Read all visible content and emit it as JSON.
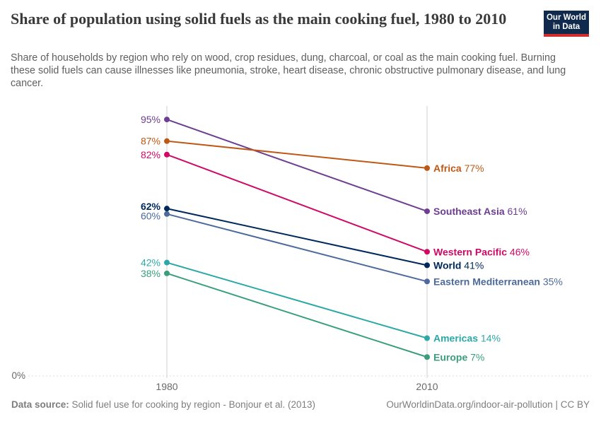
{
  "header": {
    "title": "Share of population using solid fuels as the main cooking fuel, 1980 to 2010",
    "subtitle": "Share of households by region who rely on wood, crop residues, dung, charcoal, or coal as the main cooking fuel. Burning these solid fuels can cause illnesses like pneumonia, stroke, heart disease, chronic obstructive pulmonary disease, and lung cancer.",
    "logo": {
      "line1": "Our World",
      "line2": "in Data"
    }
  },
  "chart_data": {
    "type": "line",
    "variant": "slope",
    "title": "Share of population using solid fuels as the main cooking fuel, 1980 to 2010",
    "x": [
      "1980",
      "2010"
    ],
    "unit": "%",
    "ylim": [
      0,
      100
    ],
    "visible_y_ticks": [
      "0%"
    ],
    "grid": "vertical",
    "legend_position": "inline-right",
    "series": [
      {
        "name": "Southeast Asia",
        "values": [
          95,
          61
        ],
        "color": "#6d3e91",
        "bold": false
      },
      {
        "name": "Africa",
        "values": [
          87,
          77
        ],
        "color": "#be5915",
        "bold": false
      },
      {
        "name": "Western Pacific",
        "values": [
          82,
          46
        ],
        "color": "#cf0a66",
        "bold": false
      },
      {
        "name": "World",
        "values": [
          62,
          41
        ],
        "color": "#00295b",
        "bold": true
      },
      {
        "name": "Eastern Mediterranean",
        "values": [
          60,
          35
        ],
        "color": "#4c6a9c",
        "bold": false
      },
      {
        "name": "Americas",
        "values": [
          42,
          14
        ],
        "color": "#2ca8a8",
        "bold": false
      },
      {
        "name": "Europe",
        "values": [
          38,
          7
        ],
        "color": "#3a9e7e",
        "bold": false
      }
    ],
    "style": {
      "grid_color": "#d0d0d0",
      "zero_line_color": "#dedede",
      "tick_color": "#696969",
      "zero_label": "0%"
    }
  },
  "footer": {
    "source_label": "Data source:",
    "source_text": "Solid fuel use for cooking by region - Bonjour et al. (2013)",
    "link_text": "OurWorldinData.org/indoor-air-pollution | CC BY"
  },
  "colors": {
    "logo_bg": "#102a4e",
    "logo_bar": "#d12d2d",
    "title": "#3a3a3a",
    "subtitle": "#5f5f5f",
    "footer": "#7e7e7e"
  }
}
